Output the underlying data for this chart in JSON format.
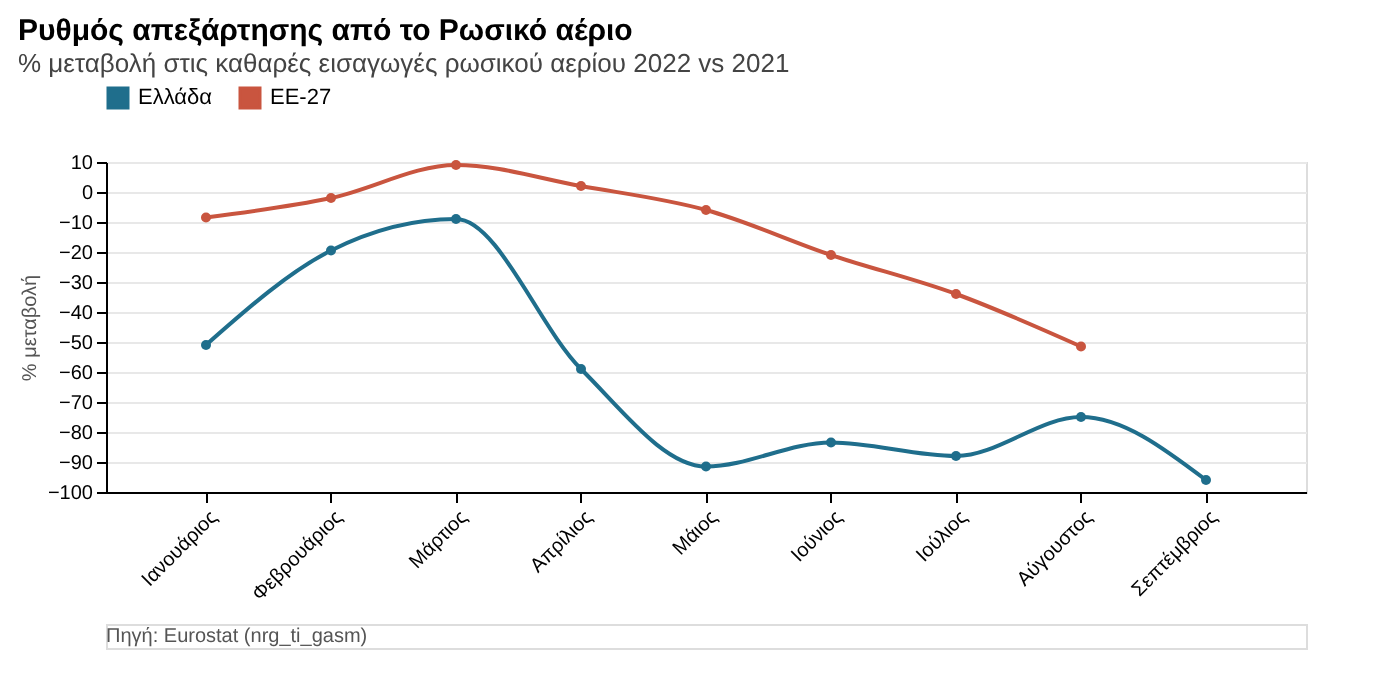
{
  "chart_data": {
    "type": "line",
    "title": "Ρυθμός απεξάρτησης από το Ρωσικό αέριο",
    "subtitle": "% μεταβολή στις καθαρές εισαγωγές ρωσικού αερίου 2022 vs 2021",
    "ylabel": "% μεταβολή",
    "categories": [
      "Ιανουάριος",
      "Φεβρουάριος",
      "Μάρτιος",
      "Απρίλιος",
      "Μάιος",
      "Ιούνιος",
      "Ιούλιος",
      "Αύγουστος",
      "Σεπτέμβριος"
    ],
    "series": [
      {
        "name": "Ελλάδα",
        "color": "#1f6e8c",
        "values": [
          -51,
          -19.5,
          -9,
          -59,
          -91.5,
          -83.5,
          -88,
          -75,
          -96
        ]
      },
      {
        "name": "ΕΕ-27",
        "color": "#c9553f",
        "values": [
          -8.5,
          -2,
          9,
          2,
          -6,
          -21,
          -34,
          -51.5,
          null
        ]
      }
    ],
    "ylim": [
      -100,
      10
    ],
    "yticks": [
      -100,
      -90,
      -80,
      -70,
      -60,
      -50,
      -40,
      -30,
      -20,
      -10,
      0,
      10
    ],
    "grid": "y",
    "legend": "top left",
    "marker": "circle",
    "line_style": "solid",
    "annotations": [
      "Πηγή: Eurostat (nrg_ti_gasm)"
    ]
  }
}
